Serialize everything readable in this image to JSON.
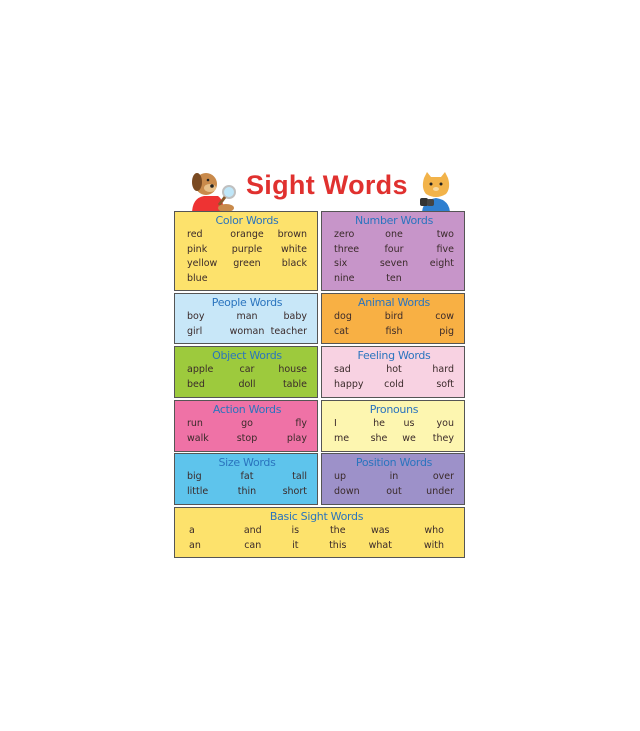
{
  "title": "Sight Words",
  "mascots": {
    "left": "dog-with-magnifying-glass",
    "right": "cat-with-binoculars"
  },
  "boxes": [
    {
      "heading": "Color Words",
      "color": "#fde26c",
      "rows": [
        [
          "red",
          "orange",
          "brown"
        ],
        [
          "pink",
          "purple",
          "white"
        ],
        [
          "yellow",
          "green",
          "black"
        ],
        [
          "blue",
          "",
          ""
        ]
      ]
    },
    {
      "heading": "Number Words",
      "color": "#c795c9",
      "rows": [
        [
          "zero",
          "one",
          "two"
        ],
        [
          "three",
          "four",
          "five"
        ],
        [
          "six",
          "seven",
          "eight"
        ],
        [
          "nine",
          "ten",
          ""
        ]
      ]
    },
    {
      "heading": "People Words",
      "color": "#c8e7f8",
      "rows": [
        [
          "boy",
          "man",
          "baby"
        ],
        [
          "girl",
          "woman",
          "teacher"
        ]
      ]
    },
    {
      "heading": "Animal Words",
      "color": "#f8b044",
      "rows": [
        [
          "dog",
          "bird",
          "cow"
        ],
        [
          "cat",
          "fish",
          "pig"
        ]
      ]
    },
    {
      "heading": "Object Words",
      "color": "#9dca3d",
      "rows": [
        [
          "apple",
          "car",
          "house"
        ],
        [
          "bed",
          "doll",
          "table"
        ]
      ]
    },
    {
      "heading": "Feeling Words",
      "color": "#f8d2e2",
      "rows": [
        [
          "sad",
          "hot",
          "hard"
        ],
        [
          "happy",
          "cold",
          "soft"
        ]
      ]
    },
    {
      "heading": "Action Words",
      "color": "#ef72a6",
      "rows": [
        [
          "run",
          "go",
          "fly"
        ],
        [
          "walk",
          "stop",
          "play"
        ]
      ]
    },
    {
      "heading": "Pronouns",
      "color": "#fdf6b0",
      "rows": [
        [
          "I",
          "he",
          "us",
          "you"
        ],
        [
          "me",
          "she",
          "we",
          "they"
        ]
      ]
    },
    {
      "heading": "Size Words",
      "color": "#5ec4ec",
      "rows": [
        [
          "big",
          "fat",
          "tall"
        ],
        [
          "little",
          "thin",
          "short"
        ]
      ]
    },
    {
      "heading": "Position Words",
      "color": "#9d91c9",
      "rows": [
        [
          "up",
          "in",
          "over"
        ],
        [
          "down",
          "out",
          "under"
        ]
      ]
    },
    {
      "heading": "Basic Sight Words",
      "color": "#fde26c",
      "rows": [
        [
          "a",
          "and",
          "is",
          "the",
          "was",
          "who"
        ],
        [
          "an",
          "can",
          "it",
          "this",
          "what",
          "with"
        ]
      ]
    }
  ]
}
